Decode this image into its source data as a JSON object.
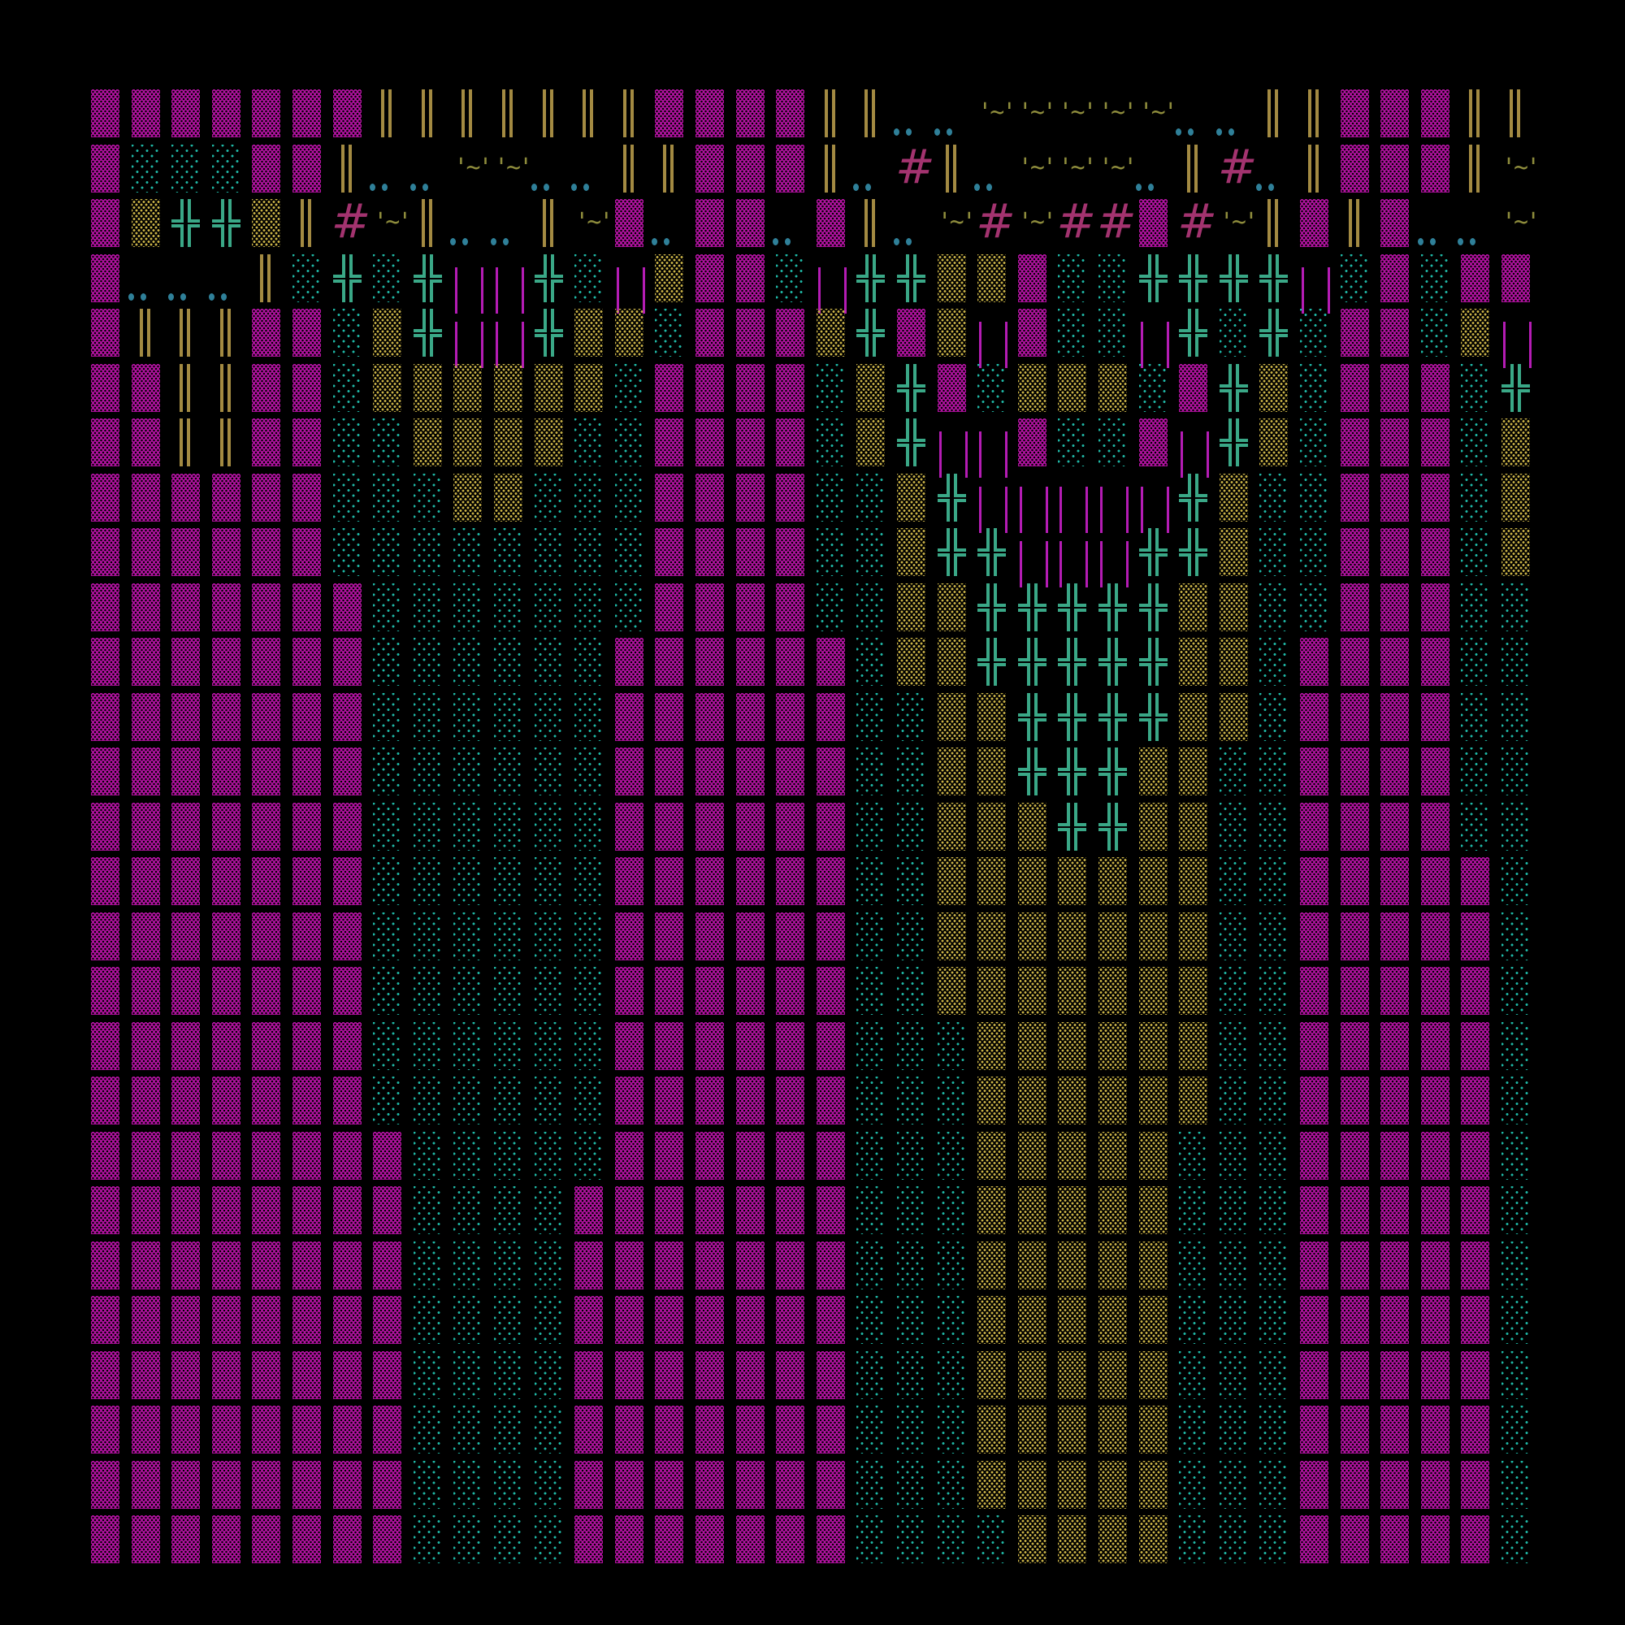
{
  "background": "#000000",
  "art": {
    "rows": [
      "MMMMMMMBBBBBBBMMMMBBDDWWWWWDDBBMMMBB",
      "MTTTMMBDDWWDDBBMMMBDHBDWWWDBHDBMMMBW",
      "MYPPYBHWBDDBWMDMMDMBDWHWHHMHWBMBMDDW",
      "MDDDBTPTPLLPTLYMMTLPPYYMTTPPPPLTMTMM",
      "MBBBMMTYPLLPYYTMMMYPMYLMTTLPTPTMMTYL",
      "MMBBMMTYYYYYYTMMMMTYPMTYYYTMPYTMMMTP",
      "MMBBMMTTYYYYTTMMMMTYPLLMTTMLPYTMMMTY",
      "MMMMMMTTTYYTTTMMMMTTYPLLLLLPYTTMMMTY",
      "MMMMMMTTTTTTTTMMMMTTYPPLLLPPYTTMMMTY",
      "MMMMMMMTTTTTTTMMMMTTYYPPPPPYYTTMMMTT",
      "MMMMMMMTTTTTTMMMMMMTYYPPPPPYYTMMMMTT",
      "MMMMMMMTTTTTTMMMMMMTTYYPPPPYYTMMMMTT",
      "MMMMMMMTTTTTTMMMMMMTTYYPPPYYTTMMMMTT",
      "MMMMMMMTTTTTTMMMMMMTTYYYPPYYTTMMMMTT",
      "MMMMMMMTTTTTTMMMMMMTTYYYYYYYTTMMMMMT",
      "MMMMMMMTTTTTTMMMMMMTTYYYYYYYTTMMMMMT",
      "MMMMMMMTTTTTTMMMMMMTTYYYYYYYTTMMMMMT",
      "MMMMMMMTTTTTTMMMMMMTTTYYYYYYTTMMMMMT",
      "MMMMMMMTTTTTTMMMMMMTTTYYYYYYTTMMMMMT",
      "MMMMMMMMTTTTTMMMMMMTTTYYYYYTTTMMMMMT",
      "MMMMMMMMTTTTMMMMMMMTTTYYYYYTTTMMMMMT",
      "MMMMMMMMTTTTMMMMMMMTTTYYYYYTTTMMMMMT",
      "MMMMMMMMTTTTMMMMMMMTTTYYYYYTTTMMMMMT",
      "MMMMMMMMTTTTMMMMMMMTTTYYYYYTTTMMMMMT",
      "MMMMMMMMTTTTMMMMMMMTTTYYYYYTTTMMMMMT",
      "MMMMMMMMTTTTMMMMMMMTTTYYYYYTTTMMMMMT",
      "MMMMMMMMTTTTMMMMMMMTTTTYYYYTTTMMMMMT"
    ]
  },
  "legend": {
    "M": {
      "glyph": "▓",
      "name": "dense-shade",
      "color": "#b0129f"
    },
    "T": {
      "glyph": "░",
      "name": "light-shade",
      "color": "#1fb8a6"
    },
    "Y": {
      "glyph": "▒",
      "name": "medium-shade",
      "color": "#c9b247"
    },
    "P": {
      "glyph": "╬",
      "name": "double-cross",
      "color": "#3aa887"
    },
    "B": {
      "glyph": "║",
      "name": "double-vertical",
      "color": "#a38a42"
    },
    "D": {
      "glyph": "..",
      "name": "double-dot",
      "color": "#2f8099"
    },
    "H": {
      "glyph": "#",
      "name": "hash",
      "color": "#a3336f"
    },
    "W": {
      "glyph": "'~'",
      "name": "tilde-quote",
      "color": "#8e8c3c"
    },
    "L": {
      "glyph": "| |",
      "name": "pipe-pair",
      "color": "#b41cb4"
    }
  }
}
